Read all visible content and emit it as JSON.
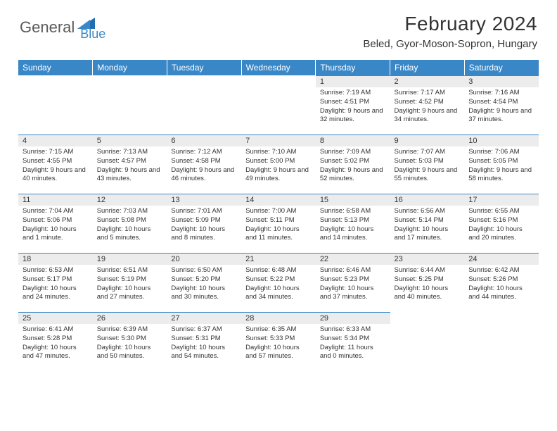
{
  "logo": {
    "text1": "General",
    "text2": "Blue"
  },
  "title": "February 2024",
  "location": "Beled, Gyor-Moson-Sopron, Hungary",
  "colors": {
    "header_bg": "#3a87c7",
    "header_text": "#ffffff",
    "daynum_bg": "#ececec",
    "text": "#333333",
    "logo_gray": "#5a5a5a",
    "logo_blue": "#3a87c7",
    "border_top": "#3a87c7"
  },
  "weekdays": [
    "Sunday",
    "Monday",
    "Tuesday",
    "Wednesday",
    "Thursday",
    "Friday",
    "Saturday"
  ],
  "weeks": [
    [
      null,
      null,
      null,
      null,
      {
        "n": "1",
        "sr": "7:19 AM",
        "ss": "4:51 PM",
        "dl": "9 hours and 32 minutes."
      },
      {
        "n": "2",
        "sr": "7:17 AM",
        "ss": "4:52 PM",
        "dl": "9 hours and 34 minutes."
      },
      {
        "n": "3",
        "sr": "7:16 AM",
        "ss": "4:54 PM",
        "dl": "9 hours and 37 minutes."
      }
    ],
    [
      {
        "n": "4",
        "sr": "7:15 AM",
        "ss": "4:55 PM",
        "dl": "9 hours and 40 minutes."
      },
      {
        "n": "5",
        "sr": "7:13 AM",
        "ss": "4:57 PM",
        "dl": "9 hours and 43 minutes."
      },
      {
        "n": "6",
        "sr": "7:12 AM",
        "ss": "4:58 PM",
        "dl": "9 hours and 46 minutes."
      },
      {
        "n": "7",
        "sr": "7:10 AM",
        "ss": "5:00 PM",
        "dl": "9 hours and 49 minutes."
      },
      {
        "n": "8",
        "sr": "7:09 AM",
        "ss": "5:02 PM",
        "dl": "9 hours and 52 minutes."
      },
      {
        "n": "9",
        "sr": "7:07 AM",
        "ss": "5:03 PM",
        "dl": "9 hours and 55 minutes."
      },
      {
        "n": "10",
        "sr": "7:06 AM",
        "ss": "5:05 PM",
        "dl": "9 hours and 58 minutes."
      }
    ],
    [
      {
        "n": "11",
        "sr": "7:04 AM",
        "ss": "5:06 PM",
        "dl": "10 hours and 1 minute."
      },
      {
        "n": "12",
        "sr": "7:03 AM",
        "ss": "5:08 PM",
        "dl": "10 hours and 5 minutes."
      },
      {
        "n": "13",
        "sr": "7:01 AM",
        "ss": "5:09 PM",
        "dl": "10 hours and 8 minutes."
      },
      {
        "n": "14",
        "sr": "7:00 AM",
        "ss": "5:11 PM",
        "dl": "10 hours and 11 minutes."
      },
      {
        "n": "15",
        "sr": "6:58 AM",
        "ss": "5:13 PM",
        "dl": "10 hours and 14 minutes."
      },
      {
        "n": "16",
        "sr": "6:56 AM",
        "ss": "5:14 PM",
        "dl": "10 hours and 17 minutes."
      },
      {
        "n": "17",
        "sr": "6:55 AM",
        "ss": "5:16 PM",
        "dl": "10 hours and 20 minutes."
      }
    ],
    [
      {
        "n": "18",
        "sr": "6:53 AM",
        "ss": "5:17 PM",
        "dl": "10 hours and 24 minutes."
      },
      {
        "n": "19",
        "sr": "6:51 AM",
        "ss": "5:19 PM",
        "dl": "10 hours and 27 minutes."
      },
      {
        "n": "20",
        "sr": "6:50 AM",
        "ss": "5:20 PM",
        "dl": "10 hours and 30 minutes."
      },
      {
        "n": "21",
        "sr": "6:48 AM",
        "ss": "5:22 PM",
        "dl": "10 hours and 34 minutes."
      },
      {
        "n": "22",
        "sr": "6:46 AM",
        "ss": "5:23 PM",
        "dl": "10 hours and 37 minutes."
      },
      {
        "n": "23",
        "sr": "6:44 AM",
        "ss": "5:25 PM",
        "dl": "10 hours and 40 minutes."
      },
      {
        "n": "24",
        "sr": "6:42 AM",
        "ss": "5:26 PM",
        "dl": "10 hours and 44 minutes."
      }
    ],
    [
      {
        "n": "25",
        "sr": "6:41 AM",
        "ss": "5:28 PM",
        "dl": "10 hours and 47 minutes."
      },
      {
        "n": "26",
        "sr": "6:39 AM",
        "ss": "5:30 PM",
        "dl": "10 hours and 50 minutes."
      },
      {
        "n": "27",
        "sr": "6:37 AM",
        "ss": "5:31 PM",
        "dl": "10 hours and 54 minutes."
      },
      {
        "n": "28",
        "sr": "6:35 AM",
        "ss": "5:33 PM",
        "dl": "10 hours and 57 minutes."
      },
      {
        "n": "29",
        "sr": "6:33 AM",
        "ss": "5:34 PM",
        "dl": "11 hours and 0 minutes."
      },
      null,
      null
    ]
  ],
  "labels": {
    "sunrise": "Sunrise:",
    "sunset": "Sunset:",
    "daylight": "Daylight:"
  }
}
